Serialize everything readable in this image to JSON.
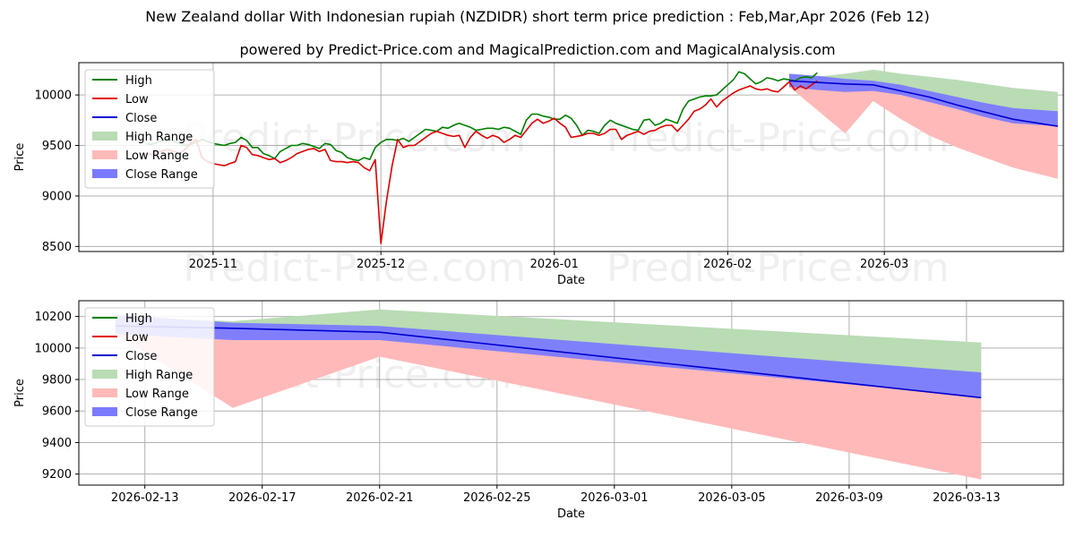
{
  "title": "New Zealand dollar With Indonesian rupiah (NZDIDR) short term price prediction : Feb,Mar,Apr 2026 (Feb 12)",
  "subtitle": "powered by Predict-Price.com and MagicalPrediction.com and MagicalAnalysis.com",
  "watermark": "Predict-Price.com",
  "colors": {
    "high": "#008000",
    "low": "#e00000",
    "close": "#0000d0",
    "high_range": "#b9dcb4",
    "low_range": "#ffb9b9",
    "close_range": "#7a7aff"
  },
  "chart_data": [
    {
      "type": "line",
      "xlabel": "Date",
      "ylabel": "Price",
      "ylim": [
        8450,
        10320
      ],
      "xlim_days": [
        -24,
        152
      ],
      "yticks": [
        8500,
        9000,
        9500,
        10000
      ],
      "xticks": [
        {
          "label": "2025-11",
          "day": 0
        },
        {
          "label": "2025-12",
          "day": 30
        },
        {
          "label": "2026-01",
          "day": 61
        },
        {
          "label": "2026-02",
          "day": 92
        },
        {
          "label": "2026-03",
          "day": 120
        }
      ],
      "legend": [
        "High",
        "Low",
        "Close",
        "High Range",
        "Low Range",
        "Close Range"
      ],
      "series": [
        {
          "name": "High",
          "day0": -12,
          "values": [
            9520,
            9510,
            9530,
            9550,
            9560,
            9540,
            9520,
            9500,
            9510,
            9530,
            9560,
            9540,
            9520,
            9510,
            9500,
            9520,
            9530,
            9580,
            9550,
            9480,
            9480,
            9420,
            9400,
            9370,
            9440,
            9470,
            9500,
            9500,
            9520,
            9510,
            9490,
            9470,
            9520,
            9510,
            9450,
            9430,
            9380,
            9360,
            9350,
            9380,
            9360,
            9480,
            9530,
            9560,
            9560,
            9550,
            9570,
            9540,
            9580,
            9620,
            9660,
            9650,
            9640,
            9680,
            9670,
            9700,
            9720,
            9700,
            9680,
            9650,
            9660,
            9670,
            9670,
            9660,
            9680,
            9670,
            9640,
            9610,
            9750,
            9810,
            9810,
            9790,
            9780,
            9760,
            9760,
            9800,
            9770,
            9700,
            9600,
            9650,
            9640,
            9620,
            9700,
            9750,
            9720,
            9700,
            9680,
            9660,
            9650,
            9750,
            9760,
            9700,
            9720,
            9760,
            9740,
            9720,
            9860,
            9940,
            9960,
            9980,
            9990,
            9990,
            10000,
            10050,
            10100,
            10150,
            10230,
            10210,
            10160,
            10110,
            10130,
            10170,
            10160,
            10140,
            10160,
            10150,
            10140,
            10170,
            10180,
            10170,
            10220
          ]
        },
        {
          "name": "Low",
          "day0": -12,
          "values": [
            9420,
            9410,
            9430,
            9450,
            9460,
            9440,
            9420,
            9460,
            9520,
            9560,
            9380,
            9340,
            9320,
            9310,
            9300,
            9320,
            9340,
            9500,
            9480,
            9410,
            9400,
            9380,
            9360,
            9370,
            9330,
            9350,
            9380,
            9420,
            9440,
            9460,
            9470,
            9440,
            9460,
            9350,
            9340,
            9340,
            9330,
            9340,
            9330,
            9280,
            9250,
            9360,
            8530,
            8950,
            9300,
            9560,
            9480,
            9500,
            9500,
            9540,
            9580,
            9620,
            9640,
            9620,
            9600,
            9590,
            9600,
            9480,
            9580,
            9640,
            9600,
            9570,
            9600,
            9580,
            9530,
            9560,
            9600,
            9580,
            9650,
            9720,
            9760,
            9720,
            9740,
            9770,
            9720,
            9680,
            9580,
            9590,
            9600,
            9620,
            9620,
            9600,
            9620,
            9660,
            9660,
            9560,
            9600,
            9620,
            9640,
            9610,
            9640,
            9650,
            9680,
            9700,
            9700,
            9640,
            9700,
            9760,
            9840,
            9860,
            9900,
            9960,
            9880,
            9940,
            9980,
            10020,
            10050,
            10070,
            10090,
            10060,
            10050,
            10060,
            10040,
            10030,
            10080,
            10130,
            10050,
            10090,
            10060,
            10100,
            10140
          ]
        }
      ],
      "forecast": {
        "days": [
          103,
          108,
          113,
          118,
          123,
          128,
          133,
          138,
          143,
          151
        ],
        "close": [
          10140,
          10124,
          10109,
          10100,
          10040,
          9980,
          9900,
          9830,
          9760,
          9690
        ],
        "close_upper": [
          10210,
          10190,
          10160,
          10140,
          10100,
          10040,
          9980,
          9920,
          9870,
          9840
        ],
        "close_lower": [
          10080,
          10050,
          10030,
          10040,
          10000,
          9930,
          9860,
          9780,
          9720,
          9690
        ],
        "high_upper": [
          10200,
          10180,
          10210,
          10250,
          10210,
          10180,
          10150,
          10110,
          10070,
          10030
        ],
        "low_lower": [
          10080,
          9850,
          9620,
          9940,
          9760,
          9600,
          9480,
          9380,
          9280,
          9170
        ]
      }
    },
    {
      "type": "line",
      "xlabel": "Date",
      "ylabel": "Price",
      "ylim": [
        9130,
        10300
      ],
      "xlim_days": [
        -1.25,
        32.3
      ],
      "yticks": [
        9200,
        9400,
        9600,
        9800,
        10000,
        10200
      ],
      "xticks": [
        {
          "label": "2026-02-13",
          "day": 1
        },
        {
          "label": "2026-02-17",
          "day": 5
        },
        {
          "label": "2026-02-21",
          "day": 9
        },
        {
          "label": "2026-02-25",
          "day": 13
        },
        {
          "label": "2026-03-01",
          "day": 17
        },
        {
          "label": "2026-03-05",
          "day": 21
        },
        {
          "label": "2026-03-09",
          "day": 25
        },
        {
          "label": "2026-03-13",
          "day": 29
        }
      ],
      "legend": [
        "High",
        "Low",
        "Close",
        "High Range",
        "Low Range",
        "Close Range"
      ],
      "forecast": {
        "days": [
          0,
          4,
          9,
          29.5
        ],
        "close": [
          10140,
          10125,
          10100,
          9685
        ],
        "close_upper": [
          10210,
          10160,
          10140,
          9845
        ],
        "close_lower": [
          10090,
          10050,
          10050,
          9690
        ],
        "high_upper": [
          10200,
          10170,
          10245,
          10035
        ],
        "low_lower": [
          10090,
          9620,
          9945,
          9165
        ]
      }
    }
  ]
}
